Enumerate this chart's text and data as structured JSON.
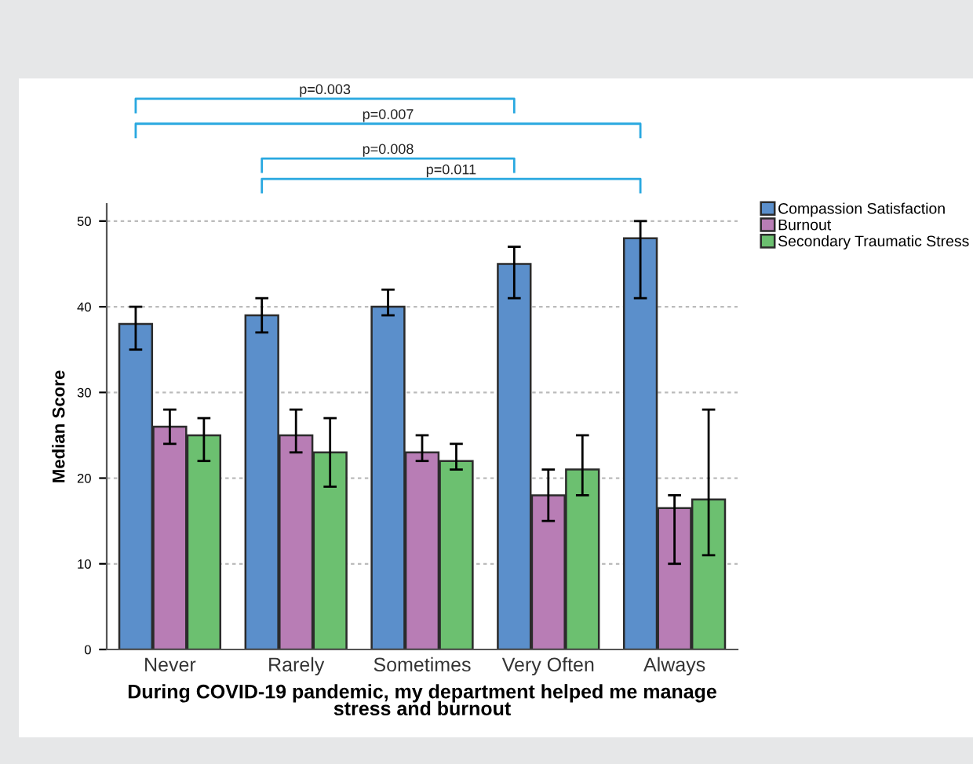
{
  "chart_data": {
    "type": "bar",
    "categories": [
      "Never",
      "Rarely",
      "Sometimes",
      "Very Often",
      "Always"
    ],
    "xlabel": "During COVID-19 pandemic, my department helped me manage\nstress and burnout",
    "ylabel": "Median Score",
    "series": [
      {
        "name": "Compassion Satisfaction",
        "color": "#5b8fcb",
        "values": [
          38,
          39,
          40,
          45,
          48
        ],
        "errors": [
          [
            35,
            40
          ],
          [
            37,
            41
          ],
          [
            39,
            42
          ],
          [
            41,
            47
          ],
          [
            41,
            50
          ]
        ]
      },
      {
        "name": "Burnout",
        "color": "#b87db5",
        "values": [
          26,
          25,
          23,
          18,
          16.5
        ],
        "errors": [
          [
            24,
            28
          ],
          [
            23,
            28
          ],
          [
            22,
            25
          ],
          [
            15,
            21
          ],
          [
            10,
            18
          ]
        ]
      },
      {
        "name": "Secondary Traumatic Stress",
        "color": "#6cc070",
        "values": [
          25,
          23,
          22,
          21,
          17.5
        ],
        "errors": [
          [
            22,
            27
          ],
          [
            19,
            27
          ],
          [
            21,
            24
          ],
          [
            18,
            25
          ],
          [
            11,
            28
          ]
        ]
      }
    ],
    "ylim": [
      0,
      52
    ],
    "yticks": [
      0,
      10,
      20,
      30,
      40,
      50
    ],
    "grid": "y",
    "legend": "top right",
    "annotations": [
      "p=0.003",
      "p=0.007",
      "p=0.008",
      "p=0.011"
    ]
  }
}
